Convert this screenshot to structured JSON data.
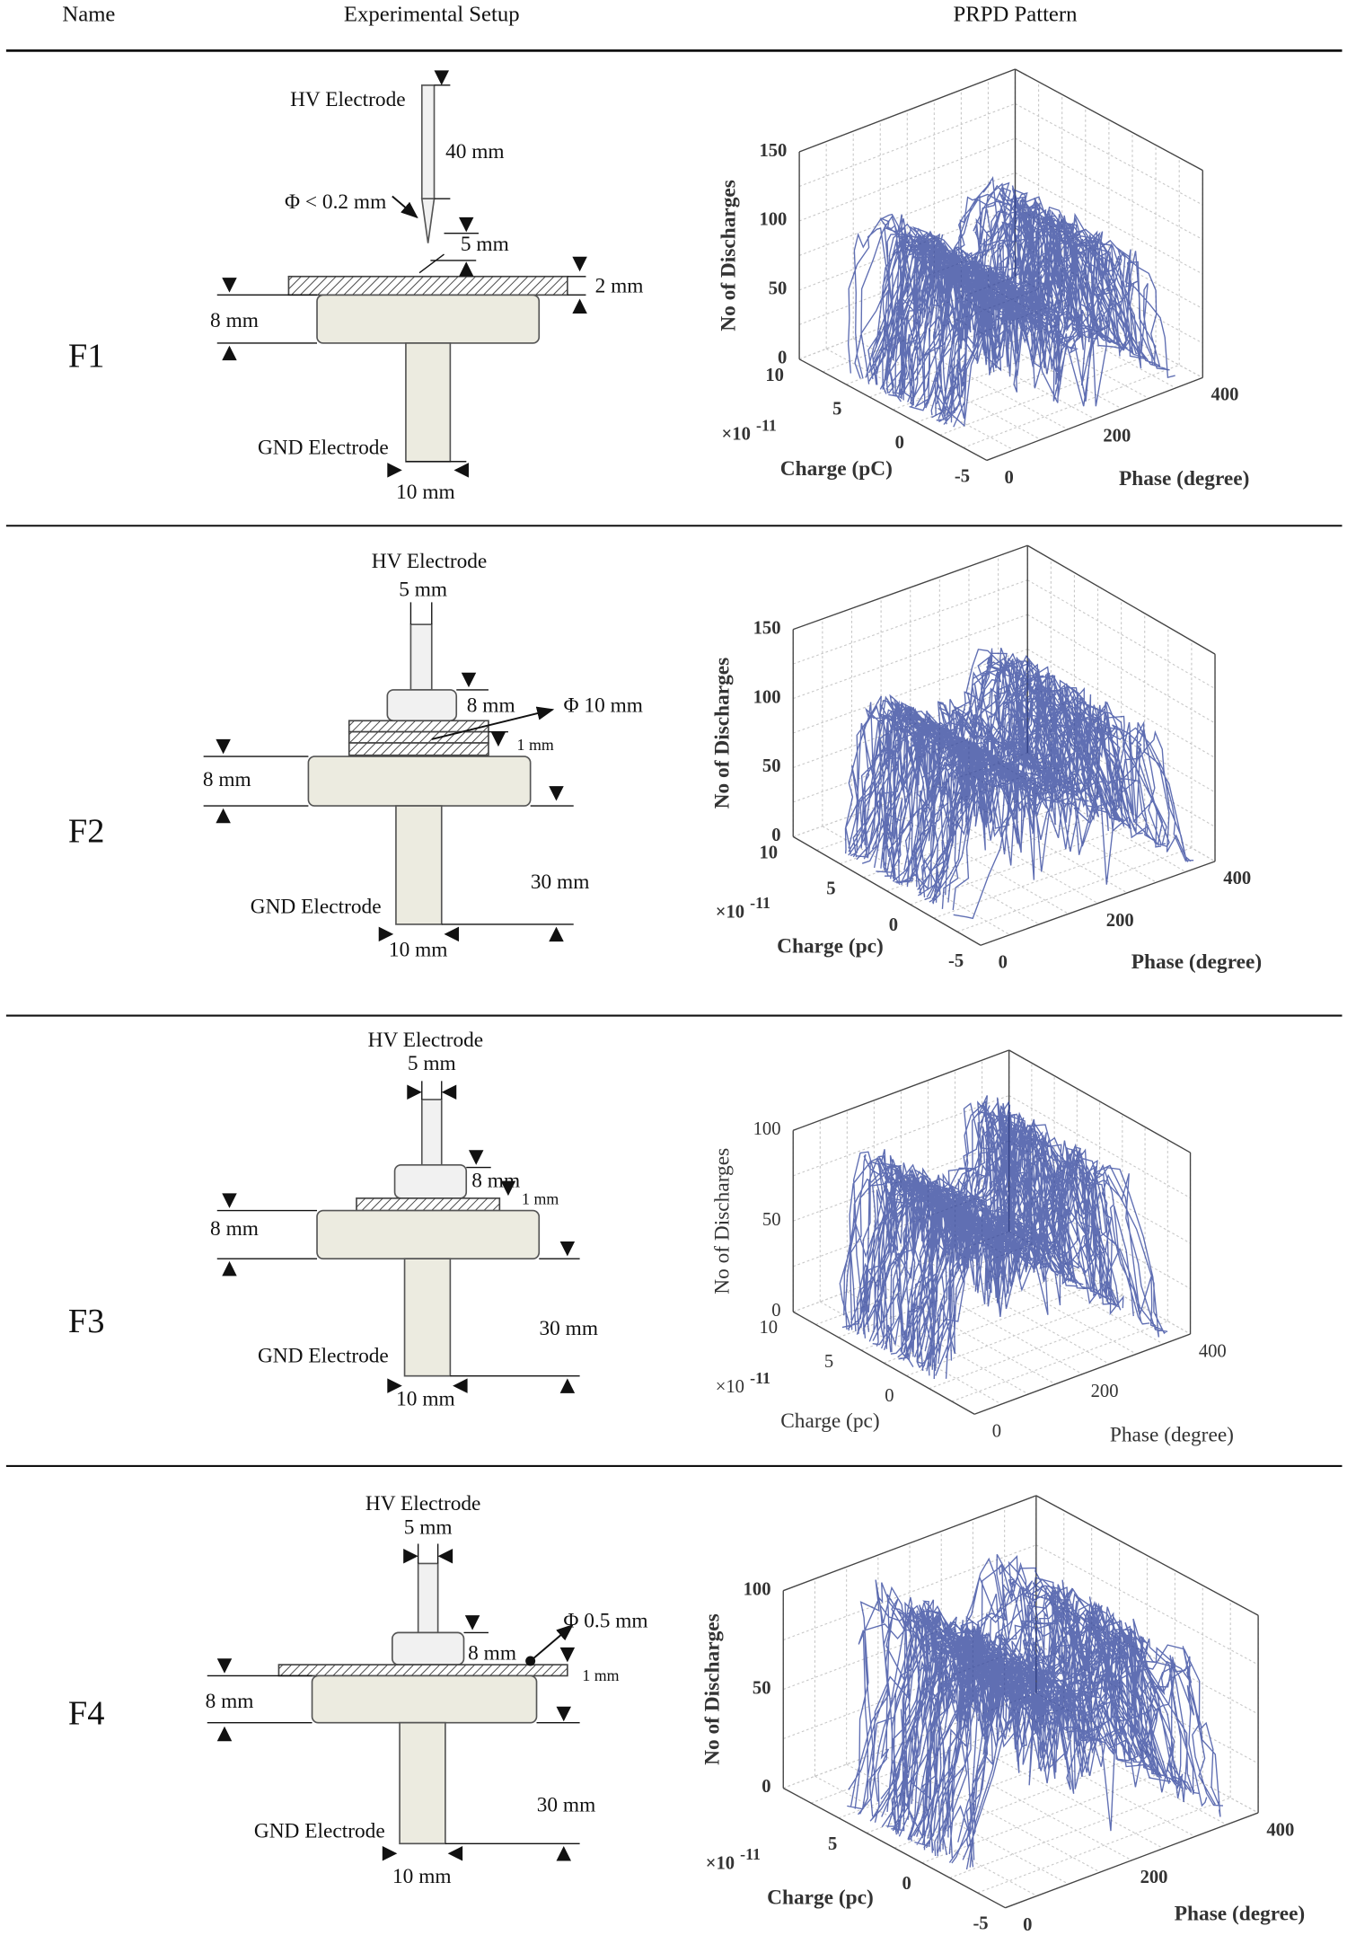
{
  "header": {
    "name": "Name",
    "setup": "Experimental Setup",
    "pattern": "PRPD Pattern"
  },
  "rows": [
    {
      "name": "F1",
      "setup": {
        "labels": [
          "HV Electrode",
          "40 mm",
          "Φ < 0.2 mm",
          "5 mm",
          "2 mm",
          "8 mm",
          "GND Electrode",
          "10 mm"
        ]
      },
      "plot": {
        "z_label": "No of Discharges",
        "charge_label": "Charge (pC)",
        "phase_label": "Phase (degree)",
        "multiplier": "×10",
        "exponent": "-11",
        "z_ticks": [
          0,
          50,
          100,
          150
        ],
        "charge_ticks": [
          10,
          5,
          0,
          -5
        ],
        "phase_ticks": [
          0,
          200,
          400
        ]
      }
    },
    {
      "name": "F2",
      "setup": {
        "labels": [
          "HV Electrode",
          "5 mm",
          "8 mm",
          "Φ 10 mm",
          "1 mm",
          "8 mm",
          "GND Electrode",
          "30 mm",
          "10 mm"
        ]
      },
      "plot": {
        "z_label": "No of Discharges",
        "charge_label": "Charge (pc)",
        "phase_label": "Phase (degree)",
        "multiplier": "×10",
        "exponent": "-11",
        "z_ticks": [
          0,
          50,
          100,
          150
        ],
        "charge_ticks": [
          10,
          5,
          0,
          -5
        ],
        "phase_ticks": [
          0,
          200,
          400
        ]
      }
    },
    {
      "name": "F3",
      "setup": {
        "labels": [
          "HV Electrode",
          "5 mm",
          "8 mm",
          "1 mm",
          "8 mm",
          "GND Electrode",
          "30 mm",
          "10 mm"
        ]
      },
      "plot": {
        "z_label": "No of Discharges",
        "charge_label": "Charge (pc)",
        "phase_label": "Phase (degree)",
        "multiplier": "×10",
        "exponent": "-11",
        "z_ticks": [
          0,
          50,
          100
        ],
        "charge_ticks": [
          10,
          5,
          0
        ],
        "phase_ticks": [
          0,
          200,
          400
        ]
      }
    },
    {
      "name": "F4",
      "setup": {
        "labels": [
          "HV Electrode",
          "5 mm",
          "8 mm",
          "Φ 0.5 mm",
          "1 mm",
          "8 mm",
          "GND Electrode",
          "30 mm",
          "10 mm"
        ]
      },
      "plot": {
        "z_label": "No of Discharges",
        "charge_label": "Charge (pc)",
        "phase_label": "Phase (degree)",
        "multiplier": "×10",
        "exponent": "-11",
        "z_ticks": [
          0,
          50,
          100
        ],
        "charge_ticks": [
          5,
          0,
          -5
        ],
        "phase_ticks": [
          0,
          200,
          400
        ]
      }
    }
  ]
}
